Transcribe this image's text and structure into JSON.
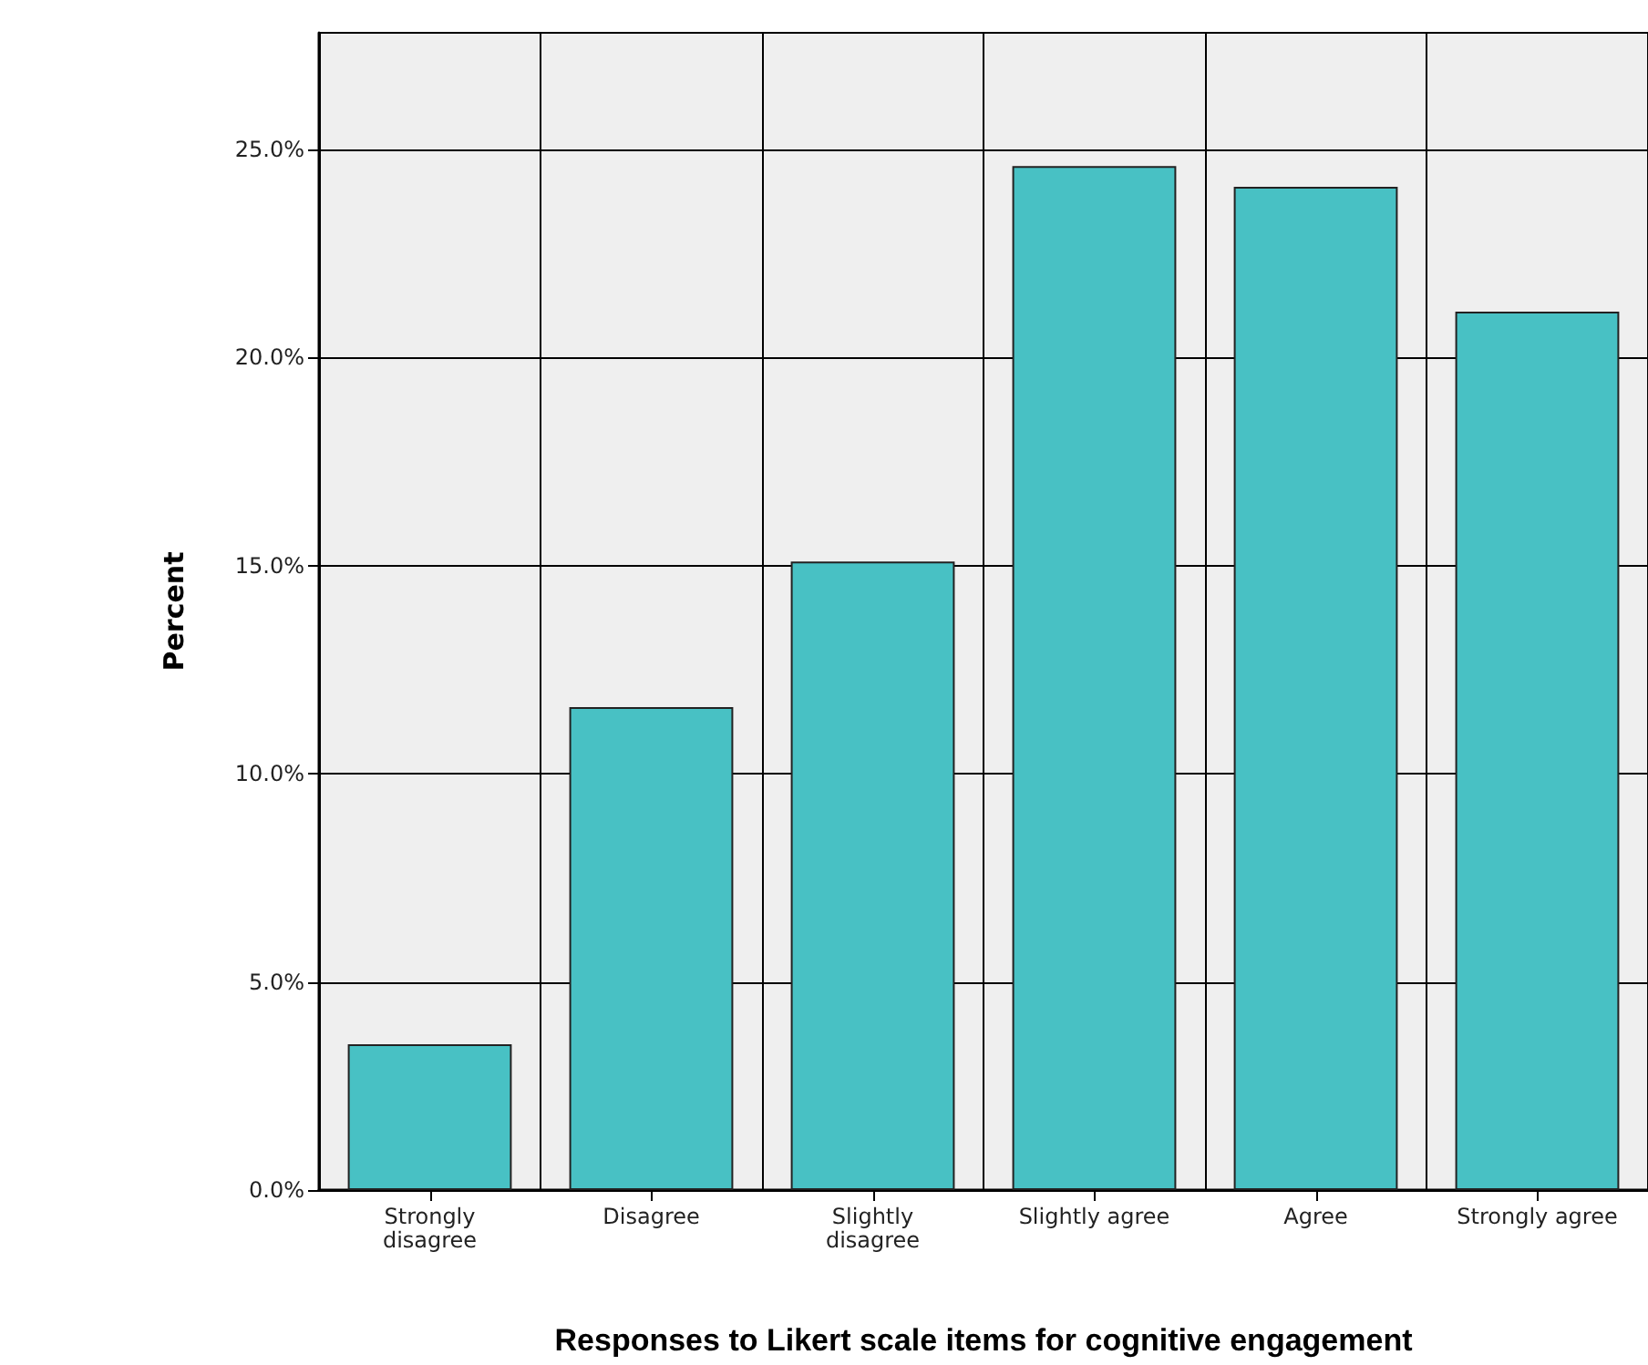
{
  "chart_data": {
    "type": "bar",
    "xlabel": "Responses to Likert scale items for cognitive engagement",
    "ylabel": "Percent",
    "categories": [
      "Strongly\ndisagree",
      "Disagree",
      "Slightly\ndisagree",
      "Slightly agree",
      "Agree",
      "Strongly agree"
    ],
    "values": [
      3.5,
      11.6,
      15.1,
      24.6,
      24.1,
      21.1
    ],
    "color": "#48c1c4",
    "ylim": [
      0,
      27.8
    ],
    "yticks": [
      {
        "value": 0,
        "label": "0.0%"
      },
      {
        "value": 5,
        "label": "5.0%"
      },
      {
        "value": 10,
        "label": "10.0%"
      },
      {
        "value": 15,
        "label": "15.0%"
      },
      {
        "value": 20,
        "label": "20.0%"
      },
      {
        "value": 25,
        "label": "25.0%"
      }
    ],
    "grid": true
  }
}
